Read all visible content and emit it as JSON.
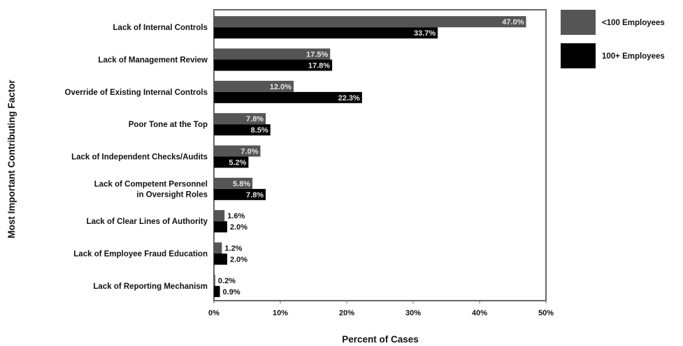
{
  "chart_data": {
    "type": "bar",
    "orientation": "horizontal",
    "categories": [
      [
        "Lack of Internal Controls"
      ],
      [
        "Lack of Management Review"
      ],
      [
        "Override of Existing Internal Controls"
      ],
      [
        "Poor Tone at the Top"
      ],
      [
        "Lack of Independent Checks/Audits"
      ],
      [
        "Lack of Competent Personnel",
        "in Oversight Roles"
      ],
      [
        "Lack of Clear Lines of Authority"
      ],
      [
        "Lack of Employee Fraud Education"
      ],
      [
        "Lack of Reporting Mechanism"
      ]
    ],
    "series": [
      {
        "name": "<100 Employees",
        "color": "#555555",
        "values": [
          47.0,
          17.5,
          12.0,
          7.8,
          7.0,
          5.8,
          1.6,
          1.2,
          0.2
        ],
        "labels": [
          "47.0%",
          "17.5%",
          "12.0%",
          "7.8%",
          "7.0%",
          "5.8%",
          "1.6%",
          "1.2%",
          "0.2%"
        ]
      },
      {
        "name": "100+ Employees",
        "color": "#000000",
        "values": [
          33.7,
          17.8,
          22.3,
          8.5,
          5.2,
          7.8,
          2.0,
          2.0,
          0.9
        ],
        "labels": [
          "33.7%",
          "17.8%",
          "22.3%",
          "8.5%",
          "5.2%",
          "7.8%",
          "2.0%",
          "2.0%",
          "0.9%"
        ]
      }
    ],
    "xlim": [
      0,
      50
    ],
    "xticks": [
      0,
      10,
      20,
      30,
      40,
      50
    ],
    "xtick_labels": [
      "0%",
      "10%",
      "20%",
      "30%",
      "40%",
      "50%"
    ],
    "xlabel": "Percent of Cases",
    "ylabel": "Most Important Contributing Factor",
    "title": "",
    "grid": false,
    "legend_position": "top-right"
  }
}
